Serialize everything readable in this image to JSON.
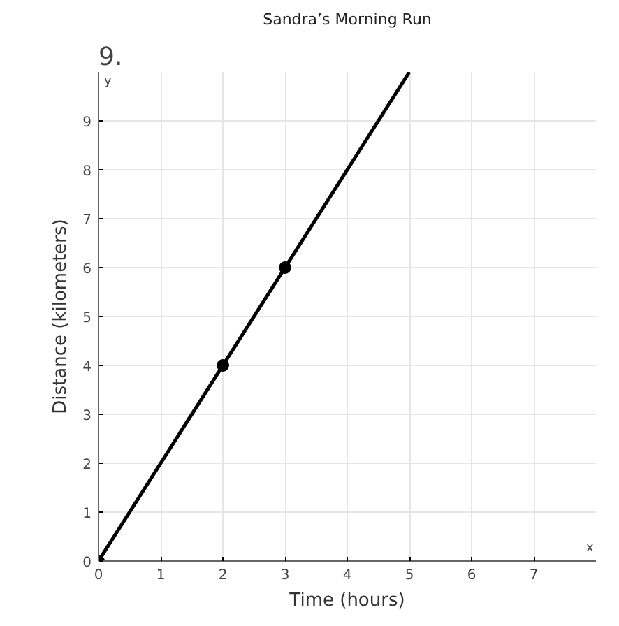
{
  "chart_data": {
    "type": "line",
    "title": "Sandra’s Morning Run",
    "xlabel": "Time (hours)",
    "ylabel": "Distance (kilometers)",
    "annotations": [
      "9.",
      "x",
      "y"
    ],
    "series": [
      {
        "color": "#000000",
        "x": [
          0,
          5
        ],
        "values": [
          0,
          10
        ],
        "marker": "none"
      },
      {
        "type": "scatter",
        "color": "#000000",
        "x": [
          0,
          2,
          3
        ],
        "values": [
          0,
          4,
          6
        ],
        "marker": "circle"
      }
    ],
    "xlim": [
      0,
      8
    ],
    "ylim": [
      0,
      10
    ],
    "xticks": [
      0,
      1,
      2,
      3,
      4,
      5,
      6,
      7
    ],
    "yticks": [
      0,
      1,
      2,
      3,
      4,
      5,
      6,
      7,
      8,
      9
    ],
    "grid": true
  }
}
